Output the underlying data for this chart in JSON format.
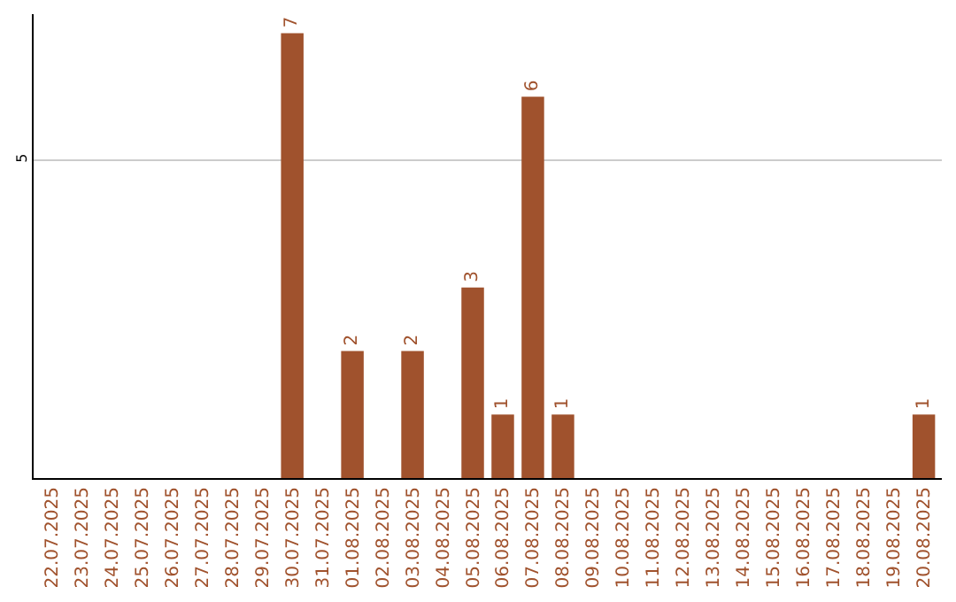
{
  "chart_data": {
    "type": "bar",
    "categories": [
      "22.07.2025",
      "23.07.2025",
      "24.07.2025",
      "25.07.2025",
      "26.07.2025",
      "27.07.2025",
      "28.07.2025",
      "29.07.2025",
      "30.07.2025",
      "31.07.2025",
      "01.08.2025",
      "02.08.2025",
      "03.08.2025",
      "04.08.2025",
      "05.08.2025",
      "06.08.2025",
      "07.08.2025",
      "08.08.2025",
      "09.08.2025",
      "10.08.2025",
      "11.08.2025",
      "12.08.2025",
      "13.08.2025",
      "14.08.2025",
      "15.08.2025",
      "16.08.2025",
      "17.08.2025",
      "18.08.2025",
      "19.08.2025",
      "20.08.2025"
    ],
    "values": [
      null,
      null,
      null,
      null,
      null,
      null,
      null,
      null,
      7,
      null,
      2,
      null,
      2,
      null,
      3,
      1,
      6,
      1,
      null,
      null,
      null,
      null,
      null,
      null,
      null,
      null,
      null,
      null,
      null,
      1
    ],
    "value_labels": [
      null,
      null,
      null,
      null,
      null,
      null,
      null,
      null,
      "7",
      null,
      "2",
      null,
      "2",
      null,
      "3",
      "1",
      "6",
      "1",
      null,
      null,
      null,
      null,
      null,
      null,
      null,
      null,
      null,
      null,
      null,
      "1"
    ],
    "color": "#a0522d",
    "ylim": [
      0,
      7.3
    ],
    "yticks": [
      5
    ],
    "grid": "y"
  }
}
